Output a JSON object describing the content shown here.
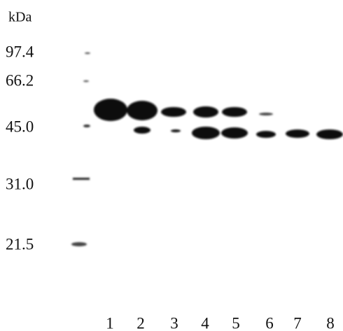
{
  "unit": "kDa",
  "markers": [
    "97.4",
    "66.2",
    "45.0",
    "31.0",
    "21.5"
  ],
  "lanes": [
    "1",
    "2",
    "3",
    "4",
    "5",
    "6",
    "7",
    "8"
  ]
}
